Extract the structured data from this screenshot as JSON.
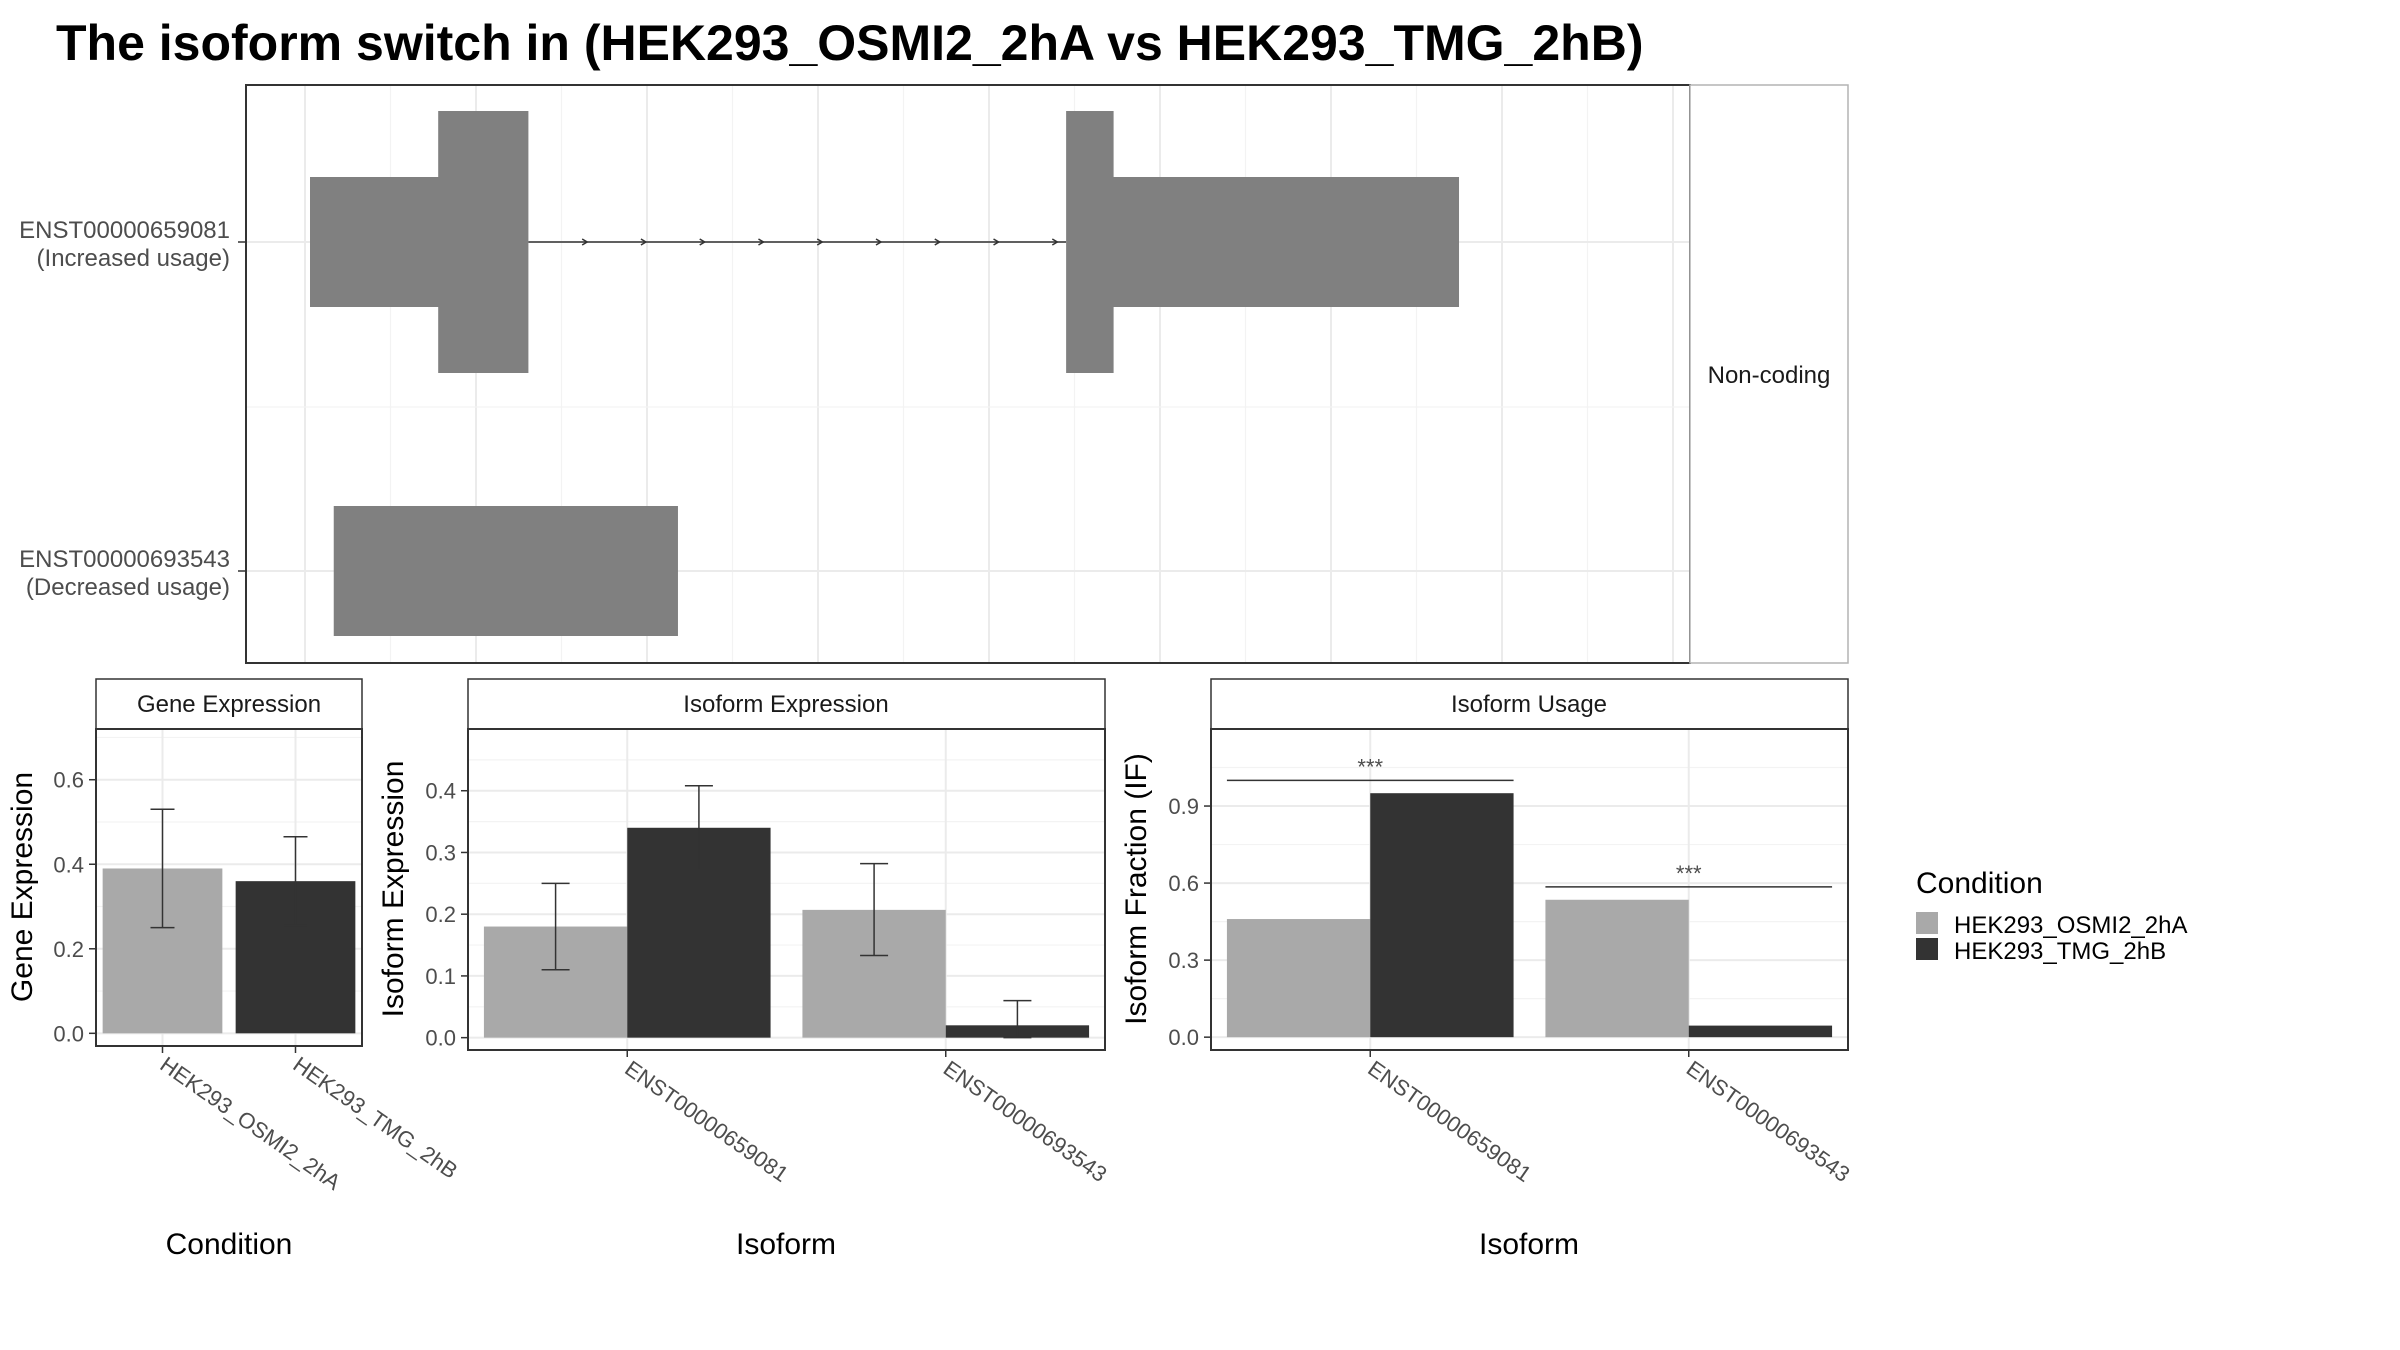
{
  "title": "The isoform switch in  (HEK293_OSMI2_2hA vs HEK293_TMG_2hB)",
  "colors": {
    "condition_a": "#a9a9a9",
    "condition_b": "#333333",
    "transcript": "#808080",
    "panel_border": "#333333",
    "strip_fill": "#ffffff"
  },
  "structure": {
    "facet_label": "Non-coding",
    "transcripts": [
      {
        "id": "ENST00000659081",
        "status": "(Increased usage)",
        "utr_blocks": [
          [
            0,
            0.11
          ],
          [
            0.67,
            0.968
          ]
        ],
        "cds_blocks": [
          [
            0.108,
            0.184
          ],
          [
            0.637,
            0.677
          ]
        ],
        "intron": [
          0.184,
          0.637
        ],
        "arrow_count": 9
      },
      {
        "id": "ENST00000693543",
        "status": "(Decreased usage)",
        "utr_blocks": [
          [
            0.02,
            0.31
          ]
        ],
        "cds_blocks": []
      }
    ]
  },
  "legend": {
    "title": "Condition",
    "items": [
      "HEK293_OSMI2_2hA",
      "HEK293_TMG_2hB"
    ]
  },
  "chart_data": [
    {
      "type": "bar",
      "title": "Gene Expression",
      "xlabel": "Condition",
      "ylabel": "Gene Expression",
      "categories": [
        "HEK293_OSMI2_2hA",
        "HEK293_TMG_2hB"
      ],
      "values": [
        0.39,
        0.36
      ],
      "error_low": [
        0.25,
        0.255
      ],
      "error_high": [
        0.53,
        0.465
      ],
      "ylim": [
        -0.03,
        0.72
      ],
      "yticks": [
        0.0,
        0.2,
        0.4,
        0.6
      ],
      "tick_labels": [
        "0.0",
        "0.2",
        "0.4",
        "0.6"
      ]
    },
    {
      "type": "bar",
      "title": "Isoform Expression",
      "xlabel": "Isoform",
      "ylabel": "Isoform Expression",
      "categories": [
        "ENST00000659081",
        "ENST00000693543"
      ],
      "series": [
        {
          "name": "HEK293_OSMI2_2hA",
          "values": [
            0.18,
            0.207
          ],
          "error_low": [
            0.11,
            0.133
          ],
          "error_high": [
            0.25,
            0.282
          ]
        },
        {
          "name": "HEK293_TMG_2hB",
          "values": [
            0.34,
            0.02
          ],
          "error_low": [
            0.272,
            0.0
          ],
          "error_high": [
            0.408,
            0.06
          ]
        }
      ],
      "ylim": [
        -0.02,
        0.5
      ],
      "yticks": [
        0.0,
        0.1,
        0.2,
        0.3,
        0.4
      ],
      "tick_labels": [
        "0.0",
        "0.1",
        "0.2",
        "0.3",
        "0.4"
      ]
    },
    {
      "type": "bar",
      "title": "Isoform Usage",
      "xlabel": "Isoform",
      "ylabel": "Isoform Fraction (IF)",
      "categories": [
        "ENST00000659081",
        "ENST00000693543"
      ],
      "series": [
        {
          "name": "HEK293_OSMI2_2hA",
          "values": [
            0.46,
            0.535
          ]
        },
        {
          "name": "HEK293_TMG_2hB",
          "values": [
            0.95,
            0.045
          ]
        }
      ],
      "significance": [
        {
          "label": "***",
          "y": 1.0
        },
        {
          "label": "***",
          "y": 0.585
        }
      ],
      "ylim": [
        -0.05,
        1.2
      ],
      "yticks": [
        0.0,
        0.3,
        0.6,
        0.9
      ],
      "tick_labels": [
        "0.0",
        "0.3",
        "0.6",
        "0.9"
      ]
    }
  ]
}
